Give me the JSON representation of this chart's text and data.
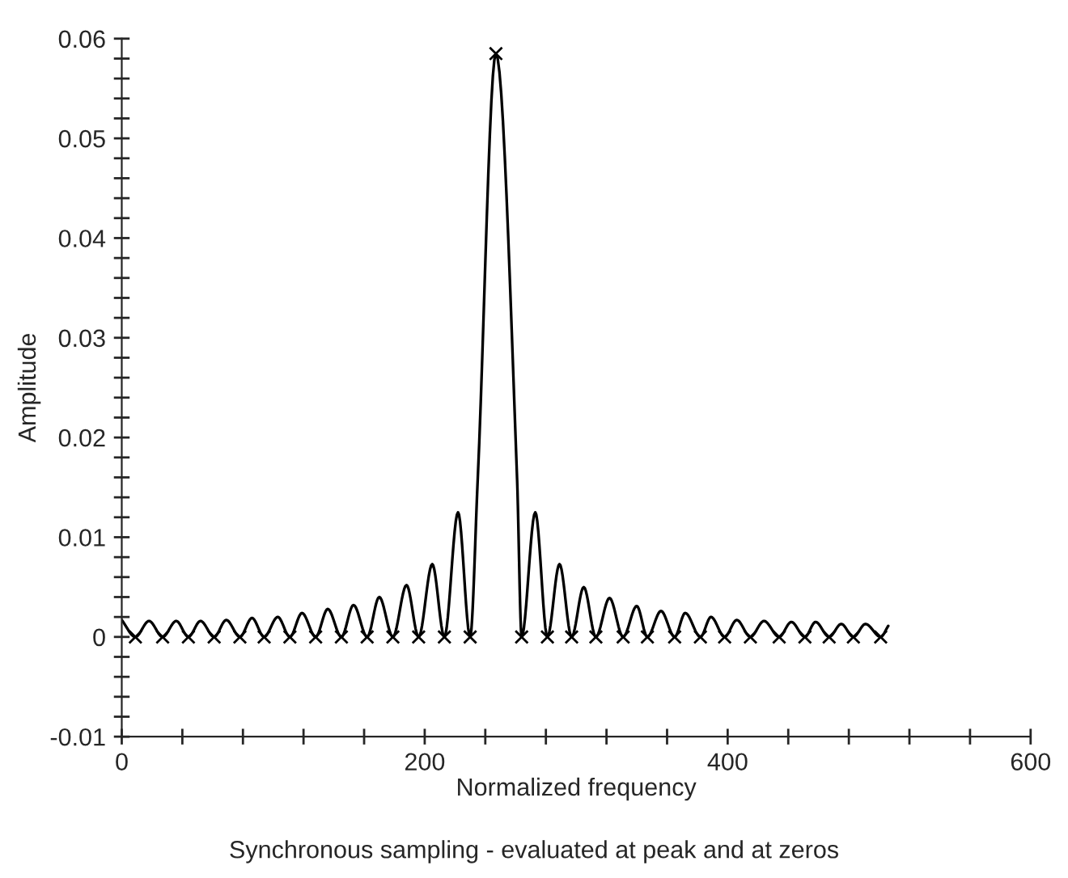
{
  "chart_data": {
    "type": "line",
    "xlabel": "Normalized frequency",
    "ylabel": "Amplitude",
    "annotations": [
      "Synchronous sampling - evaluated at peak and at zeros"
    ],
    "series": [
      {
        "color": "#000000",
        "marker": "none",
        "x": [
          0,
          9,
          18,
          27,
          36,
          44,
          52,
          61,
          69,
          78,
          86,
          94,
          103,
          111,
          119,
          128,
          136,
          145,
          153,
          162,
          170,
          179,
          188,
          196,
          205,
          213,
          222,
          230,
          235,
          247,
          261,
          264,
          273,
          281,
          289,
          297,
          305,
          313,
          322,
          331,
          340,
          347,
          356,
          365,
          372,
          382,
          389,
          398,
          406,
          415,
          424,
          434,
          442,
          451,
          458,
          467,
          475,
          483,
          491,
          501,
          506
        ],
        "values": [
          0.0017,
          0,
          0.0016,
          0,
          0.0016,
          0,
          0.0016,
          0,
          0.0017,
          0,
          0.0019,
          0,
          0.002,
          0,
          0.0024,
          0,
          0.0028,
          0,
          0.0032,
          0,
          0.004,
          0,
          0.0052,
          0,
          0.0073,
          0,
          0.0125,
          0,
          0.0158,
          0.0585,
          0.0158,
          0,
          0.0125,
          0,
          0.0073,
          0,
          0.005,
          0,
          0.0039,
          0,
          0.0031,
          0,
          0.0026,
          0,
          0.0024,
          0,
          0.002,
          0,
          0.0017,
          0,
          0.0016,
          0,
          0.0015,
          0,
          0.0015,
          0,
          0.0013,
          0,
          0.0013,
          0,
          0.0011
        ]
      },
      {
        "type": "scatter",
        "color": "#000000",
        "marker": "cross",
        "x": [
          9,
          27,
          44,
          61,
          78,
          94,
          111,
          128,
          145,
          162,
          179,
          196,
          213,
          230,
          247,
          264,
          281,
          297,
          313,
          331,
          347,
          365,
          382,
          398,
          415,
          434,
          451,
          467,
          483,
          501
        ],
        "values": [
          0,
          0,
          0,
          0,
          0,
          0,
          0,
          0,
          0,
          0,
          0,
          0,
          0,
          0,
          0.0585,
          0,
          0,
          0,
          0,
          0,
          0,
          0,
          0,
          0,
          0,
          0,
          0,
          0,
          0,
          0
        ]
      }
    ],
    "xlim": [
      0,
      600
    ],
    "ylim": [
      -0.01,
      0.06
    ],
    "xticks": [
      0,
      {
        "value": 40,
        "label": null
      },
      {
        "value": 80,
        "label": null
      },
      {
        "value": 120,
        "label": null
      },
      {
        "value": 160,
        "label": null
      },
      200,
      {
        "value": 240,
        "label": null
      },
      {
        "value": 280,
        "label": null
      },
      {
        "value": 320,
        "label": null
      },
      {
        "value": 360,
        "label": null
      },
      400,
      {
        "value": 440,
        "label": null
      },
      {
        "value": 480,
        "label": null
      },
      {
        "value": 520,
        "label": null
      },
      {
        "value": 560,
        "label": null
      },
      600
    ],
    "yticks": [
      -0.01,
      {
        "value": -0.008,
        "label": null
      },
      {
        "value": -0.006,
        "label": null
      },
      {
        "value": -0.004,
        "label": null
      },
      {
        "value": -0.002,
        "label": null
      },
      0,
      {
        "value": 0.002,
        "label": null
      },
      {
        "value": 0.004,
        "label": null
      },
      {
        "value": 0.006,
        "label": null
      },
      {
        "value": 0.008,
        "label": null
      },
      0.01,
      {
        "value": 0.012,
        "label": null
      },
      {
        "value": 0.014,
        "label": null
      },
      {
        "value": 0.016,
        "label": null
      },
      {
        "value": 0.018,
        "label": null
      },
      0.02,
      {
        "value": 0.022,
        "label": null
      },
      {
        "value": 0.024,
        "label": null
      },
      {
        "value": 0.026,
        "label": null
      },
      {
        "value": 0.028,
        "label": null
      },
      0.03,
      {
        "value": 0.032,
        "label": null
      },
      {
        "value": 0.034,
        "label": null
      },
      {
        "value": 0.036,
        "label": null
      },
      {
        "value": 0.038,
        "label": null
      },
      0.04,
      {
        "value": 0.042,
        "label": null
      },
      {
        "value": 0.044,
        "label": null
      },
      {
        "value": 0.046,
        "label": null
      },
      {
        "value": 0.048,
        "label": null
      },
      0.05,
      {
        "value": 0.052,
        "label": null
      },
      {
        "value": 0.054,
        "label": null
      },
      {
        "value": 0.056,
        "label": null
      },
      {
        "value": 0.058,
        "label": null
      },
      0.06
    ],
    "grid": false,
    "legend": false
  }
}
